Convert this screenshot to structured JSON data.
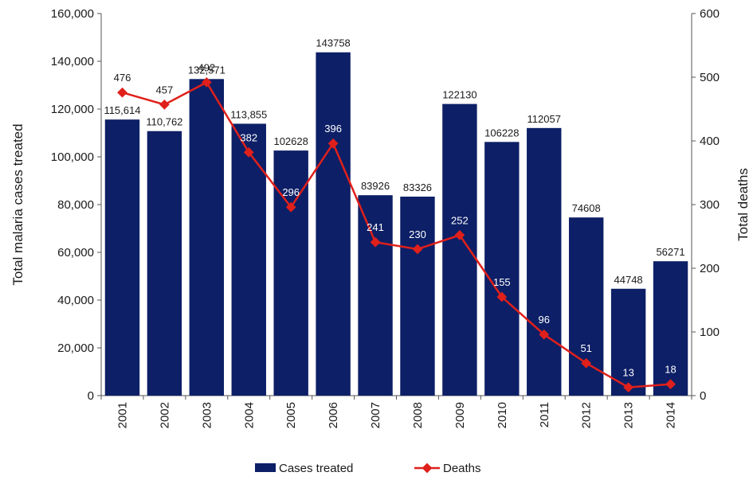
{
  "chart_data": {
    "type": "bar",
    "categories": [
      "2001",
      "2002",
      "2003",
      "2004",
      "2005",
      "2006",
      "2007",
      "2008",
      "2009",
      "2010",
      "2011",
      "2012",
      "2013",
      "2014"
    ],
    "series": [
      {
        "name": "Cases treated",
        "type": "bar",
        "axis": "left",
        "values": [
          115614,
          110762,
          132571,
          113855,
          102628,
          143758,
          83926,
          83326,
          122130,
          106228,
          112057,
          74608,
          44748,
          56271
        ],
        "labels": [
          "115,614",
          "110,762",
          "132,571",
          "113,855",
          "102628",
          "143758",
          "83926",
          "83326",
          "122130",
          "106228",
          "112057",
          "74608",
          "44748",
          "56271"
        ],
        "color": "#0d1f66"
      },
      {
        "name": "Deaths",
        "type": "line",
        "axis": "right",
        "values": [
          476,
          457,
          492,
          382,
          296,
          396,
          241,
          230,
          252,
          155,
          96,
          51,
          13,
          18
        ],
        "labels": [
          "476",
          "457",
          "492",
          "382",
          "296",
          "396",
          "241",
          "230",
          "252",
          "155",
          "96",
          "51",
          "13",
          "18"
        ],
        "color": "#e0201b"
      }
    ],
    "xlabel": "",
    "ylabel": "Total malaria cases treated",
    "y2label": "Total deaths",
    "ylim": [
      0,
      160000
    ],
    "y2lim": [
      0,
      600
    ],
    "yticks": [
      "0",
      "20,000",
      "40,000",
      "60,000",
      "80,000",
      "100,000",
      "120,000",
      "140,000",
      "160,000"
    ],
    "y2ticks": [
      "0",
      "100",
      "200",
      "300",
      "400",
      "500",
      "600"
    ],
    "grid": false,
    "legend": "bottom"
  }
}
